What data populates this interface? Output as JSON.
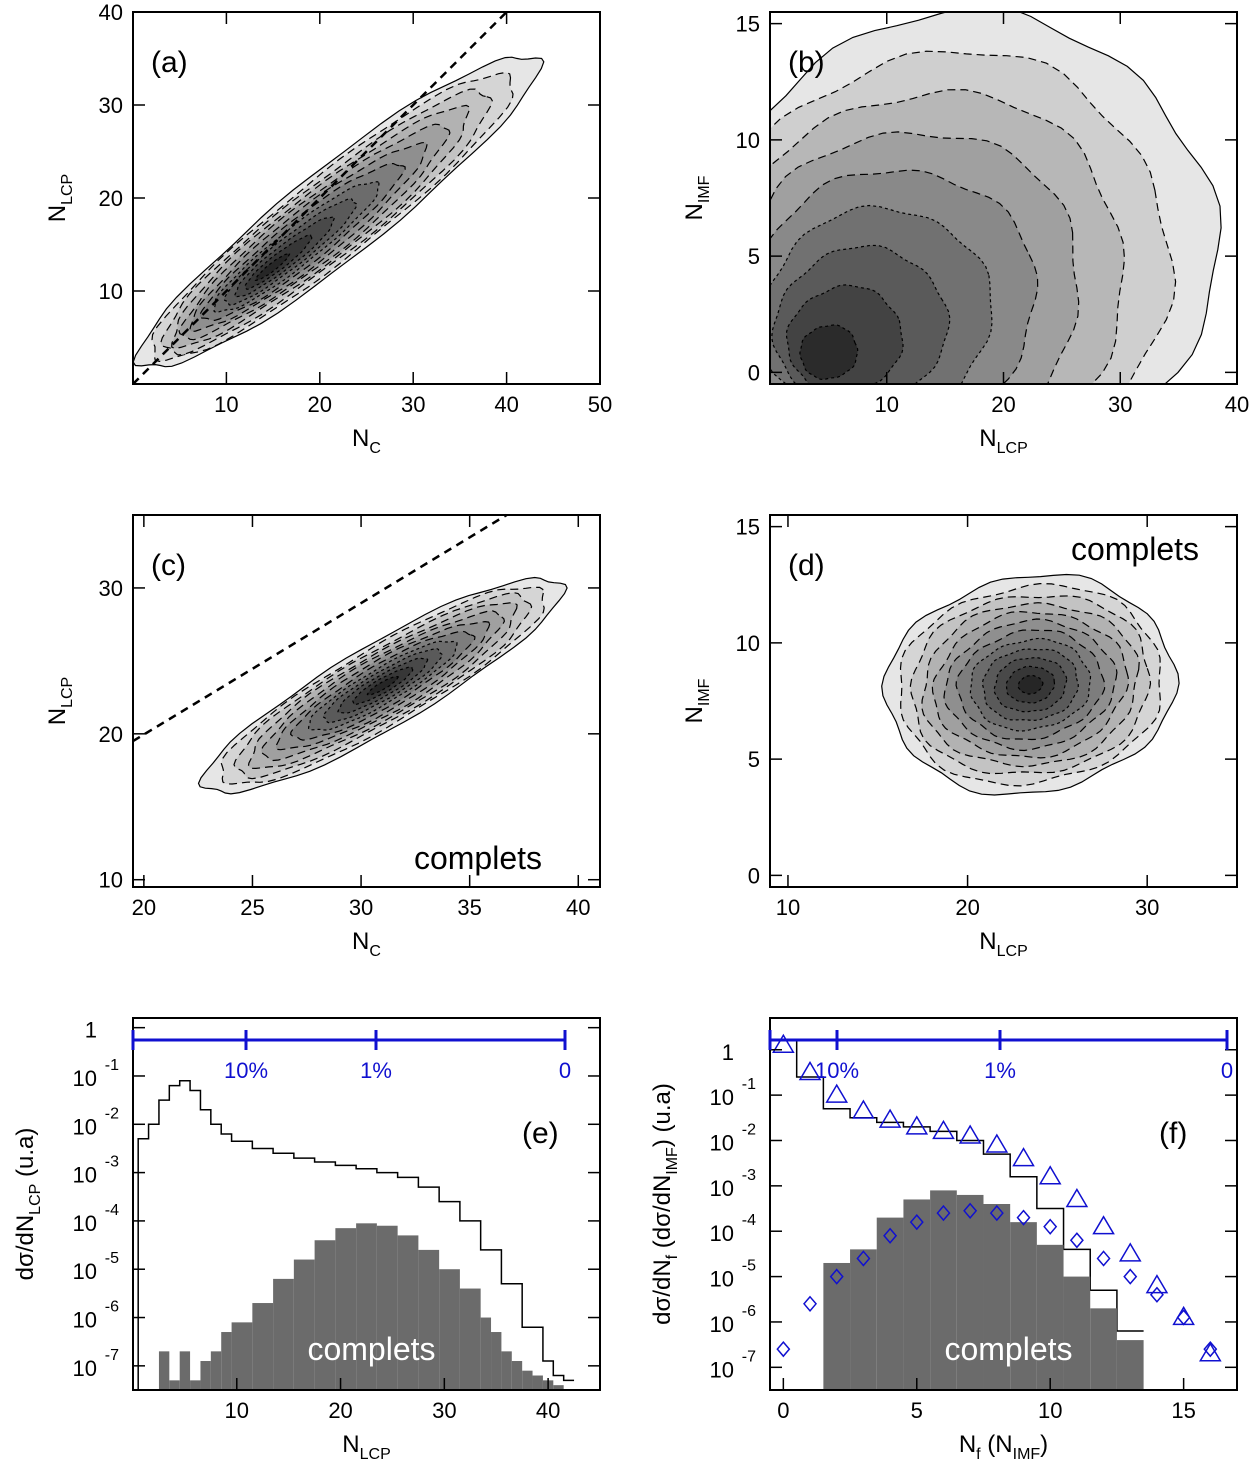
{
  "figure": {
    "panels": [
      {
        "id": "a",
        "label": "(a)",
        "type": "contour",
        "xlabel": "N",
        "xlabel_sub": "C",
        "ylabel": "N",
        "ylabel_sub": "LCP",
        "xlim": [
          0,
          50
        ],
        "ylim": [
          0,
          40
        ],
        "xticks": [
          "10",
          "20",
          "30",
          "40",
          "50"
        ],
        "yticks": [
          "10",
          "20",
          "30",
          "40"
        ],
        "annotation": "",
        "has_dashed_line": true
      },
      {
        "id": "b",
        "label": "(b)",
        "type": "contour",
        "xlabel": "N",
        "xlabel_sub": "LCP",
        "ylabel": "N",
        "ylabel_sub": "IMF",
        "xlim": [
          0,
          40
        ],
        "ylim": [
          -0.5,
          15.5
        ],
        "xticks": [
          "10",
          "20",
          "30",
          "40"
        ],
        "yticks": [
          "0",
          "5",
          "10",
          "15"
        ],
        "annotation": "",
        "has_dashed_line": false
      },
      {
        "id": "c",
        "label": "(c)",
        "type": "contour",
        "xlabel": "N",
        "xlabel_sub": "C",
        "ylabel": "N",
        "ylabel_sub": "LCP",
        "xlim": [
          19.5,
          41
        ],
        "ylim": [
          9.5,
          35
        ],
        "xticks": [
          "20",
          "25",
          "30",
          "35",
          "40"
        ],
        "yticks": [
          "10",
          "20",
          "30"
        ],
        "annotation": "complets",
        "has_dashed_line": true
      },
      {
        "id": "d",
        "label": "(d)",
        "type": "contour",
        "xlabel": "N",
        "xlabel_sub": "LCP",
        "ylabel": "N",
        "ylabel_sub": "IMF",
        "xlim": [
          9,
          35
        ],
        "ylim": [
          -0.5,
          15.5
        ],
        "xticks": [
          "10",
          "20",
          "30"
        ],
        "yticks": [
          "0",
          "5",
          "10",
          "15"
        ],
        "annotation": "complets",
        "has_dashed_line": false
      },
      {
        "id": "e",
        "label": "(e)",
        "type": "histogram",
        "xlabel": "N",
        "xlabel_sub": "LCP",
        "ylabel": "dσ/dN",
        "ylabel_sub": "LCP",
        "ylabel_tail": " (u.a)",
        "xlim": [
          0,
          45
        ],
        "xticks": [
          "10",
          "20",
          "30",
          "40"
        ],
        "yticks": [
          {
            "base": "10",
            "exp": "-7"
          },
          {
            "base": "10",
            "exp": "-6"
          },
          {
            "base": "10",
            "exp": "-5"
          },
          {
            "base": "10",
            "exp": "-4"
          },
          {
            "base": "10",
            "exp": "-3"
          },
          {
            "base": "10",
            "exp": "-2"
          },
          {
            "base": "10",
            "exp": "-1"
          },
          {
            "base": "1",
            "exp": ""
          }
        ],
        "annotation": "complets",
        "top_scale": {
          "labels": [
            "10%",
            "1%",
            "0"
          ]
        }
      },
      {
        "id": "f",
        "label": "(f)",
        "type": "histogram",
        "xlabel": "N",
        "xlabel_sub": "f",
        "xlabel_tail": " (N",
        "xlabel_sub2": "IMF",
        "xlabel_tail2": ")",
        "ylabel": "dσ/dN",
        "ylabel_sub": "f",
        "ylabel_mid": " (dσ/dN",
        "ylabel_sub2": "IMF",
        "ylabel_tail": ") (u.a)",
        "xlim": [
          -0.5,
          17
        ],
        "xticks": [
          "0",
          "5",
          "10",
          "15"
        ],
        "yticks": [
          {
            "base": "10",
            "exp": "-7"
          },
          {
            "base": "10",
            "exp": "-6"
          },
          {
            "base": "10",
            "exp": "-5"
          },
          {
            "base": "10",
            "exp": "-4"
          },
          {
            "base": "10",
            "exp": "-3"
          },
          {
            "base": "10",
            "exp": "-2"
          },
          {
            "base": "10",
            "exp": "-1"
          },
          {
            "base": "1",
            "exp": ""
          }
        ],
        "annotation": "complets",
        "top_scale": {
          "labels": [
            "10%",
            "1%",
            "0"
          ]
        }
      }
    ]
  },
  "chart_data": [
    {
      "type": "heatmap",
      "panel": "a",
      "note": "contour density of N_LCP vs N_C",
      "dashed_line": {
        "x": [
          0,
          40
        ],
        "y": [
          0,
          40
        ]
      },
      "levels": [
        {
          "center": [
            20,
            17
          ],
          "spread": [
            20,
            16
          ],
          "rotation_deg": 38
        },
        {
          "center": [
            22,
            18
          ],
          "spread": [
            16,
            12
          ],
          "rotation_deg": 38
        }
      ]
    },
    {
      "type": "heatmap",
      "panel": "b",
      "note": "contour density of N_IMF vs N_LCP",
      "outer_contour": {
        "x": [
          1,
          15,
          30,
          38,
          36,
          28,
          1
        ],
        "y": [
          4.5,
          15,
          13,
          7,
          1,
          -0.2,
          -0.2
        ]
      }
    },
    {
      "type": "heatmap",
      "panel": "c",
      "note": "contour density of N_LCP vs N_C for complete events",
      "dashed_line": {
        "x": [
          19.5,
          36.7
        ],
        "y": [
          19.5,
          35
        ]
      },
      "peak": [
        31,
        23
      ]
    },
    {
      "type": "heatmap",
      "panel": "d",
      "note": "contour density of N_IMF vs N_LCP for complete events",
      "peak": [
        23,
        8.2
      ]
    },
    {
      "type": "bar",
      "panel": "e",
      "series": [
        {
          "name": "",
          "style": "step",
          "x": [
            1,
            2,
            3,
            4,
            5,
            6,
            7,
            8,
            9,
            10,
            12,
            14,
            16,
            18,
            20,
            22,
            24,
            26,
            28,
            30,
            32,
            34,
            36,
            38,
            40,
            41,
            42
          ],
          "y": [
            -2.3,
            -2.0,
            -1.5,
            -1.2,
            -1.1,
            -1.3,
            -1.7,
            -2.0,
            -2.2,
            -2.35,
            -2.5,
            -2.6,
            -2.7,
            -2.78,
            -2.85,
            -2.92,
            -3.0,
            -3.1,
            -3.3,
            -3.6,
            -4.0,
            -4.6,
            -5.3,
            -6.2,
            -6.9,
            -7.2,
            -7.3
          ]
        },
        {
          "name": "complets",
          "style": "filled",
          "x": [
            3,
            4,
            5,
            6,
            7,
            8,
            9,
            10,
            12,
            14,
            16,
            18,
            20,
            22,
            24,
            26,
            28,
            30,
            32,
            34,
            35,
            36,
            37,
            38,
            39,
            40,
            41
          ],
          "y": [
            -6.7,
            -7.3,
            -6.7,
            -7.3,
            -6.9,
            -6.7,
            -6.3,
            -6.1,
            -5.7,
            -5.2,
            -4.8,
            -4.4,
            -4.15,
            -4.05,
            -4.1,
            -4.3,
            -4.6,
            -5.0,
            -5.4,
            -6.0,
            -6.3,
            -6.7,
            -6.9,
            -7.1,
            -7.2,
            -7.3,
            -7.4
          ]
        }
      ],
      "ylim": [
        -7.5,
        0.2
      ]
    },
    {
      "type": "bar",
      "panel": "f",
      "series": [
        {
          "name": "",
          "style": "step",
          "x": [
            0,
            1,
            2,
            3,
            4,
            5,
            6,
            7,
            8,
            9,
            10,
            11,
            12,
            13
          ],
          "y": [
            0.2,
            -0.6,
            -1.3,
            -1.5,
            -1.6,
            -1.7,
            -1.8,
            -2.0,
            -2.3,
            -2.8,
            -3.5,
            -4.4,
            -5.3,
            -6.2
          ]
        },
        {
          "name": "complets",
          "style": "filled",
          "x": [
            2,
            3,
            4,
            5,
            6,
            7,
            8,
            9,
            10,
            11,
            12,
            13
          ],
          "y": [
            -4.7,
            -4.4,
            -3.7,
            -3.3,
            -3.1,
            -3.2,
            -3.4,
            -3.8,
            -4.3,
            -5.0,
            -5.7,
            -6.4
          ]
        },
        {
          "name": "",
          "style": "triangles",
          "x": [
            0,
            1,
            2,
            3,
            4,
            5,
            6,
            7,
            8,
            9,
            10,
            11,
            12,
            13,
            14,
            15,
            16
          ],
          "y": [
            0.1,
            -0.5,
            -1.0,
            -1.35,
            -1.55,
            -1.7,
            -1.8,
            -1.9,
            -2.1,
            -2.4,
            -2.8,
            -3.3,
            -3.9,
            -4.5,
            -5.2,
            -5.9,
            -6.7
          ]
        },
        {
          "name": "",
          "style": "diamonds",
          "x": [
            0,
            1,
            2,
            3,
            4,
            5,
            6,
            7,
            8,
            9,
            10,
            11,
            12,
            13,
            14,
            15,
            16
          ],
          "y": [
            -6.6,
            -5.6,
            -5.0,
            -4.6,
            -4.1,
            -3.8,
            -3.6,
            -3.55,
            -3.6,
            -3.7,
            -3.9,
            -4.2,
            -4.6,
            -5.0,
            -5.4,
            -5.9,
            -6.6
          ]
        }
      ],
      "ylim": [
        -7.5,
        0.7
      ]
    }
  ]
}
